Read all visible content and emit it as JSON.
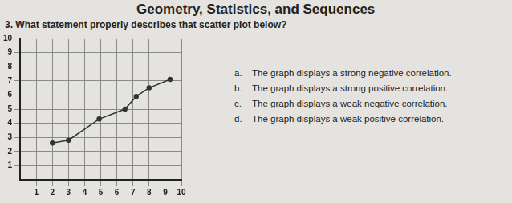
{
  "page": {
    "heading": "Geometry, Statistics, and Sequences",
    "question": "3. What statement properly describes that scatter plot below?",
    "choices": [
      {
        "letter": "a.",
        "text": "The graph displays a strong negative correlation."
      },
      {
        "letter": "b.",
        "text": "The graph displays a strong positive correlation."
      },
      {
        "letter": "c.",
        "text": "The graph displays a weak negative correlation."
      },
      {
        "letter": "d.",
        "text": "The graph displays a weak positive correlation."
      }
    ]
  },
  "chart_data": {
    "type": "scatter",
    "x": [
      2.0,
      3.0,
      4.9,
      6.5,
      7.2,
      8.0,
      9.3
    ],
    "values": [
      2.6,
      2.8,
      4.3,
      5.0,
      5.9,
      6.5,
      7.1
    ],
    "color": "#333333",
    "marker": "circle",
    "line_style": "solid",
    "xlim": [
      0,
      10
    ],
    "xticks": [
      1,
      2,
      3,
      4,
      5,
      6,
      7,
      8,
      9,
      10
    ],
    "ylim": [
      0,
      10
    ],
    "yticks": [
      1,
      2,
      3,
      4,
      5,
      6,
      7,
      8,
      9,
      10
    ],
    "grid": true
  }
}
